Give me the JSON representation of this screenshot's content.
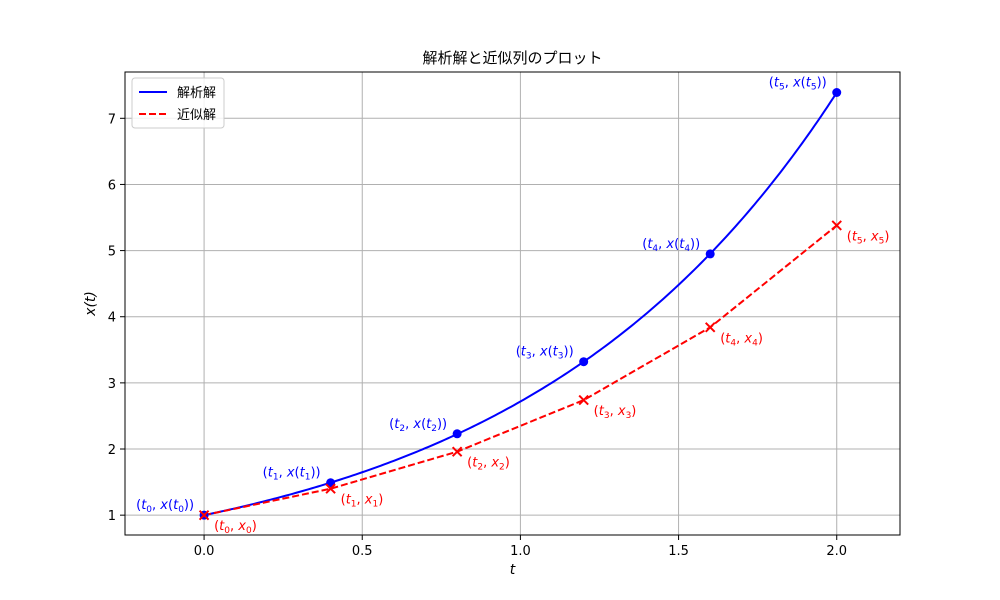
{
  "chart_data": {
    "type": "line",
    "title": "解析解と近似列のプロット",
    "xlabel": "t",
    "ylabel": "x(t)",
    "xlim": [
      -0.25,
      2.2
    ],
    "ylim": [
      0.7,
      7.7
    ],
    "x_ticks": [
      0.0,
      0.5,
      1.0,
      1.5,
      2.0
    ],
    "x_tick_labels": [
      "0.0",
      "0.5",
      "1.0",
      "1.5",
      "2.0"
    ],
    "y_ticks": [
      1,
      2,
      3,
      4,
      5,
      6,
      7
    ],
    "y_tick_labels": [
      "1",
      "2",
      "3",
      "4",
      "5",
      "6",
      "7"
    ],
    "grid": true,
    "legend_position": "top-left",
    "series": [
      {
        "name": "解析解",
        "color": "#0000ff",
        "line_style": "solid",
        "curve_function": "exp(t)",
        "points": [
          {
            "x": 0.0,
            "y": 1.0,
            "label_base": "t",
            "label_sub": "0",
            "label_mid": ", x(t",
            "label_sub2": "0",
            "label_end": "))"
          },
          {
            "x": 0.4,
            "y": 1.49,
            "label_base": "t",
            "label_sub": "1",
            "label_mid": ", x(t",
            "label_sub2": "1",
            "label_end": "))"
          },
          {
            "x": 0.8,
            "y": 2.23,
            "label_base": "t",
            "label_sub": "2",
            "label_mid": ", x(t",
            "label_sub2": "2",
            "label_end": "))"
          },
          {
            "x": 1.2,
            "y": 3.32,
            "label_base": "t",
            "label_sub": "3",
            "label_mid": ", x(t",
            "label_sub2": "3",
            "label_end": "))"
          },
          {
            "x": 1.6,
            "y": 4.95,
            "label_base": "t",
            "label_sub": "4",
            "label_mid": ", x(t",
            "label_sub2": "4",
            "label_end": "))"
          },
          {
            "x": 2.0,
            "y": 7.39,
            "label_base": "t",
            "label_sub": "5",
            "label_mid": ", x(t",
            "label_sub2": "5",
            "label_end": "))"
          }
        ]
      },
      {
        "name": "近似解",
        "color": "#ff0000",
        "line_style": "dashed",
        "marker": "x",
        "points": [
          {
            "x": 0.0,
            "y": 1.0,
            "label_base": "t",
            "label_sub": "0",
            "label_mid": ", x",
            "label_sub2": "0",
            "label_end": ")"
          },
          {
            "x": 0.4,
            "y": 1.4,
            "label_base": "t",
            "label_sub": "1",
            "label_mid": ", x",
            "label_sub2": "1",
            "label_end": ")"
          },
          {
            "x": 0.8,
            "y": 1.96,
            "label_base": "t",
            "label_sub": "2",
            "label_mid": ", x",
            "label_sub2": "2",
            "label_end": ")"
          },
          {
            "x": 1.2,
            "y": 2.74,
            "label_base": "t",
            "label_sub": "3",
            "label_mid": ", x",
            "label_sub2": "3",
            "label_end": ")"
          },
          {
            "x": 1.6,
            "y": 3.84,
            "label_base": "t",
            "label_sub": "4",
            "label_mid": ", x",
            "label_sub2": "4",
            "label_end": ")"
          },
          {
            "x": 2.0,
            "y": 5.38,
            "label_base": "t",
            "label_sub": "5",
            "label_mid": ", x",
            "label_sub2": "5",
            "label_end": ")"
          }
        ]
      }
    ]
  }
}
